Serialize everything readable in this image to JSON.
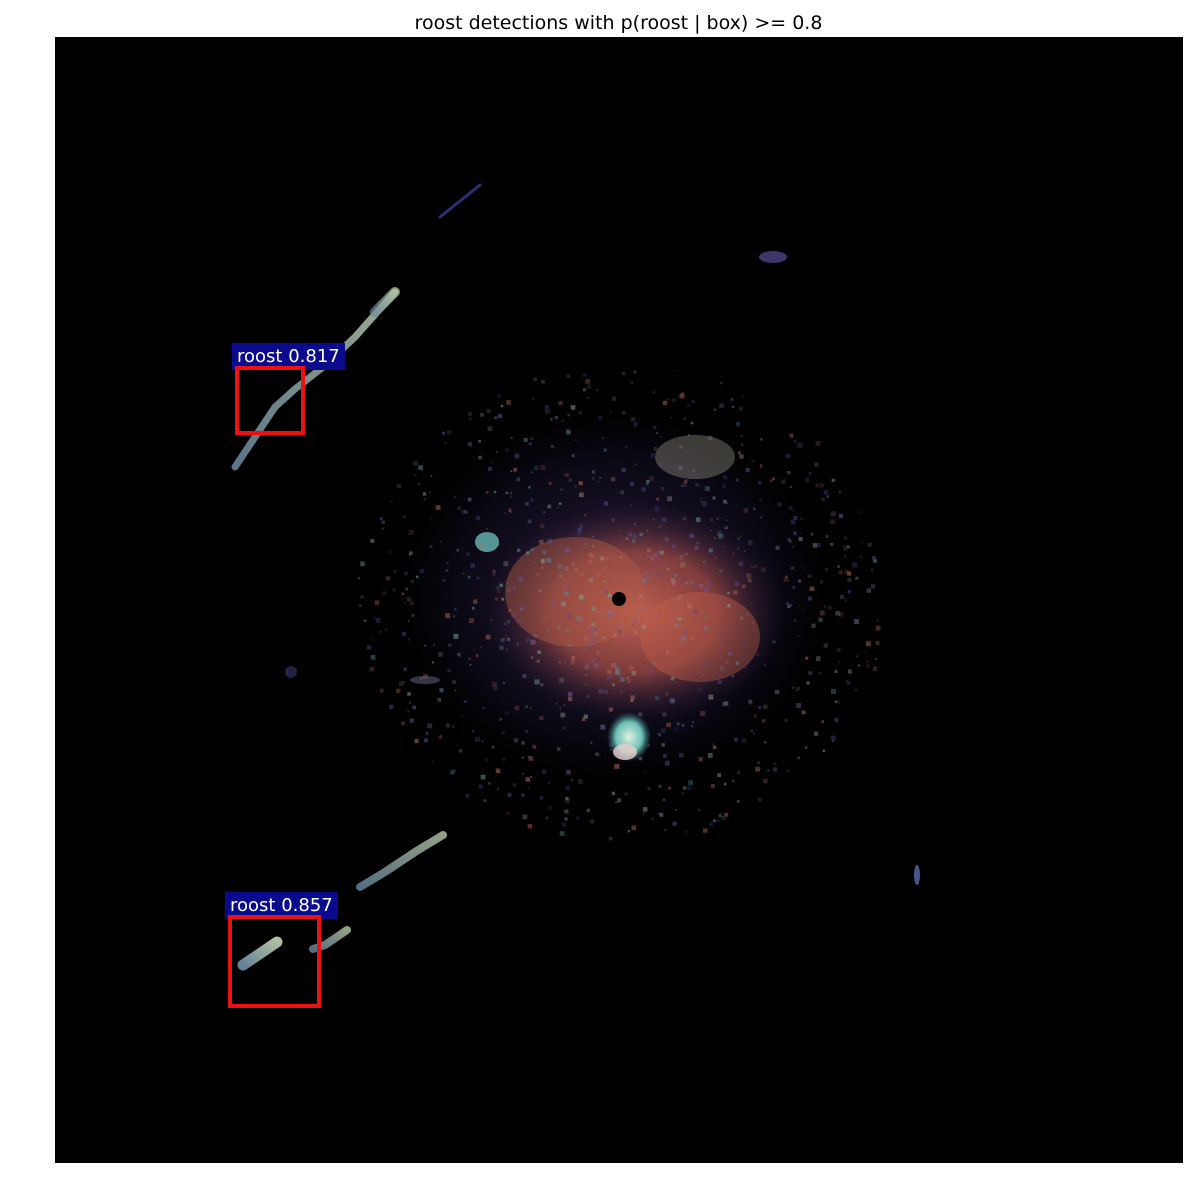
{
  "title": "roost detections with p(roost | box) >= 0.8",
  "detections": [
    {
      "label": "roost 0.817",
      "class": "roost",
      "score": 0.817
    },
    {
      "label": "roost 0.857",
      "class": "roost",
      "score": 0.857
    }
  ],
  "colors": {
    "box_edge": "#ee1111",
    "label_background": "#0a0a8c",
    "radar_background": "#000000",
    "figure_background": "#ffffff"
  }
}
